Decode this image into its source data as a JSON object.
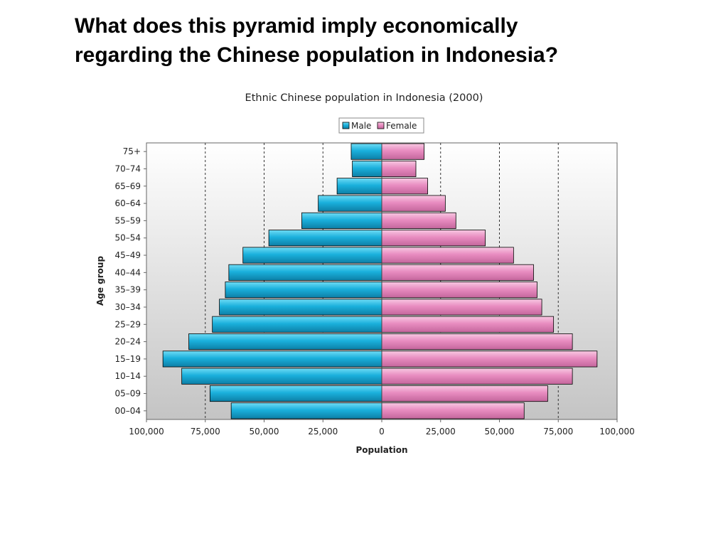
{
  "slide": {
    "question_lines": [
      "What does this pyramid imply economically",
      "regarding the Chinese population in Indonesia?"
    ]
  },
  "chart_data": {
    "type": "bar",
    "orientation": "horizontal-population-pyramid",
    "title": "Ethnic Chinese population in Indonesia (2000)",
    "xlabel": "Population",
    "ylabel": "Age group",
    "categories": [
      "75+",
      "70–74",
      "65–69",
      "60–64",
      "55–59",
      "50–54",
      "45–49",
      "40–44",
      "35–39",
      "30–34",
      "25–29",
      "20–24",
      "15–19",
      "10–14",
      "05–09",
      "00–04"
    ],
    "series": [
      {
        "name": "Male",
        "color": "#1ab0dc",
        "values": [
          13000,
          12500,
          19000,
          27000,
          34000,
          48000,
          59000,
          65000,
          66500,
          69000,
          72000,
          82000,
          93000,
          85000,
          73000,
          64000
        ]
      },
      {
        "name": "Female",
        "color": "#e88cc0",
        "values": [
          18000,
          14500,
          19500,
          27000,
          31500,
          44000,
          56000,
          64500,
          66000,
          68000,
          73000,
          81000,
          91500,
          81000,
          70500,
          60500
        ]
      }
    ],
    "xlim": [
      -100000,
      100000
    ],
    "xticks": [
      {
        "value": -100000,
        "label": "100,000"
      },
      {
        "value": -75000,
        "label": "75,000"
      },
      {
        "value": -50000,
        "label": "50,000"
      },
      {
        "value": -25000,
        "label": "25,000"
      },
      {
        "value": 0,
        "label": "0"
      },
      {
        "value": 25000,
        "label": "25,000"
      },
      {
        "value": 50000,
        "label": "50,000"
      },
      {
        "value": 75000,
        "label": "75,000"
      },
      {
        "value": 100000,
        "label": "100,000"
      }
    ],
    "gridlines": [
      -75000,
      -50000,
      -25000,
      25000,
      50000,
      75000
    ],
    "grid": true,
    "legend_position": "top-center"
  }
}
